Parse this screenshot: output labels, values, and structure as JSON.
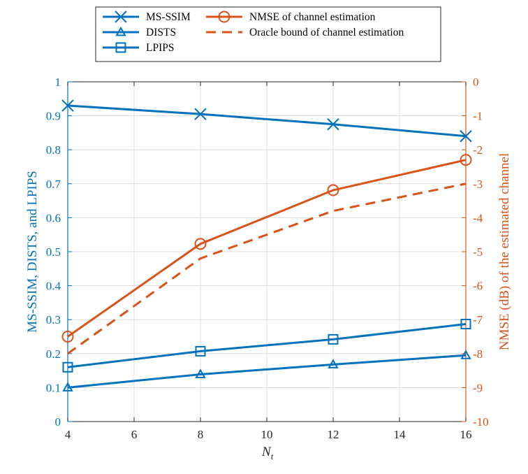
{
  "chart_data": {
    "type": "line",
    "x": [
      4,
      8,
      12,
      16
    ],
    "xlim": [
      4,
      16
    ],
    "xticks": [
      4,
      6,
      8,
      10,
      12,
      14,
      16
    ],
    "xlabel": "N",
    "xlabel_sub": "t",
    "ylim_left": [
      0,
      1
    ],
    "yticks_left": [
      "0",
      "0.1",
      "0.2",
      "0.3",
      "0.4",
      "0.5",
      "0.6",
      "0.7",
      "0.8",
      "0.9",
      "1"
    ],
    "ylabel_left": "MS-SSIM, DISTS, and LPIPS",
    "ylim_right": [
      -10,
      0
    ],
    "yticks_right": [
      "-10",
      "-9",
      "-8",
      "-7",
      "-6",
      "-5",
      "-4",
      "-3",
      "-2",
      "-1",
      "0"
    ],
    "ylabel_right": "NMSE (dB) of the estimated channel",
    "grid": true,
    "legend_position": "top-center",
    "series": [
      {
        "name": "MS-SSIM",
        "axis": "left",
        "color": "#0072BD",
        "marker": "x",
        "dash": "solid",
        "values": [
          0.93,
          0.905,
          0.875,
          0.84
        ]
      },
      {
        "name": "DISTS",
        "axis": "left",
        "color": "#0072BD",
        "marker": "triangle",
        "dash": "solid",
        "values": [
          0.1,
          0.139,
          0.168,
          0.195
        ]
      },
      {
        "name": "LPIPS",
        "axis": "left",
        "color": "#0072BD",
        "marker": "square",
        "dash": "solid",
        "values": [
          0.16,
          0.207,
          0.242,
          0.287
        ]
      },
      {
        "name": "NMSE of channel estimation",
        "axis": "right",
        "color": "#D95319",
        "marker": "circle",
        "dash": "solid",
        "values": [
          -7.5,
          -4.77,
          -3.19,
          -2.3
        ]
      },
      {
        "name": "Oracle bound of channel estimation",
        "axis": "right",
        "color": "#D95319",
        "marker": "none",
        "dash": "dashed",
        "values": [
          -8.0,
          -5.2,
          -3.8,
          -3.0
        ]
      }
    ]
  }
}
